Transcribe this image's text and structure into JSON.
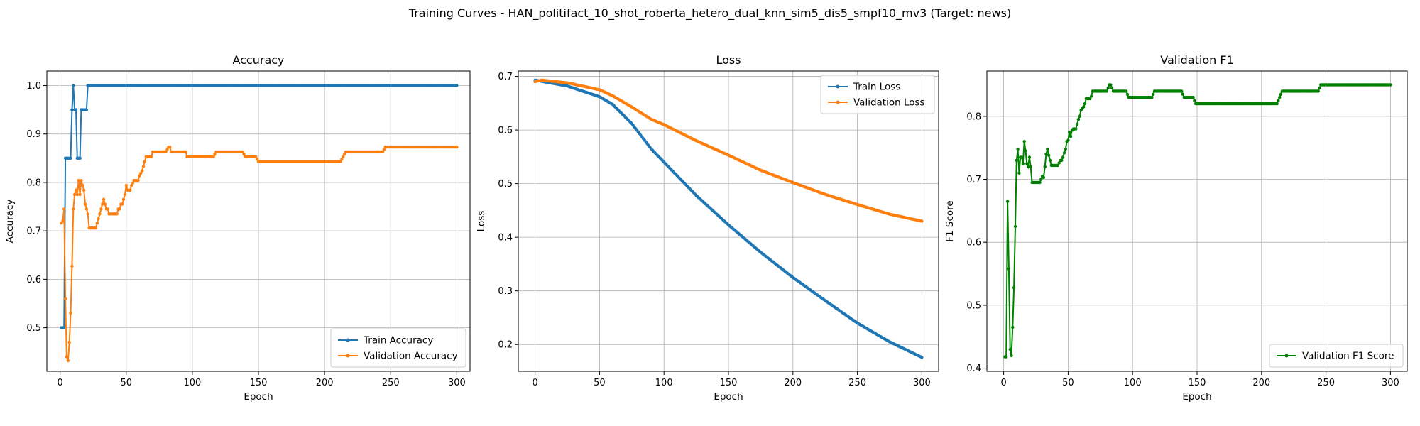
{
  "figure": {
    "suptitle": "Training Curves - HAN_politifact_10_shot_roberta_hetero_dual_knn_sim5_dis5_smpf10_mv3 (Target: news)"
  },
  "chart_data": [
    {
      "type": "line",
      "title": "Accuracy",
      "xlabel": "Epoch",
      "ylabel": "Accuracy",
      "xlim": [
        -10,
        310
      ],
      "ylim": [
        0.41,
        1.03
      ],
      "xticks": [
        0,
        50,
        100,
        150,
        200,
        250,
        300
      ],
      "yticks": [
        0.5,
        0.6,
        0.7,
        0.8,
        0.9,
        1.0
      ],
      "ytick_labels": [
        "0.5",
        "0.6",
        "0.7",
        "0.8",
        "0.9",
        "1.0"
      ],
      "grid": true,
      "legend": "lower-right",
      "series": [
        {
          "name": "Train Accuracy",
          "color": "#1f77b4",
          "x": [
            1,
            2,
            3,
            4,
            5,
            6,
            7,
            8,
            9,
            10,
            11,
            12,
            13,
            14,
            15,
            16,
            17,
            18,
            19,
            20,
            21,
            22,
            23,
            300
          ],
          "y": [
            0.5,
            0.5,
            0.5,
            0.85,
            0.85,
            0.85,
            0.85,
            0.85,
            0.95,
            1.0,
            0.95,
            0.95,
            0.85,
            0.85,
            0.85,
            0.95,
            0.95,
            0.95,
            0.95,
            0.95,
            1.0,
            1.0,
            1.0,
            1.0
          ]
        },
        {
          "name": "Validation Accuracy",
          "color": "#ff7f0e",
          "x": [
            1,
            2,
            3,
            4,
            5,
            6,
            7,
            8,
            9,
            10,
            11,
            12,
            13,
            14,
            15,
            16,
            17,
            18,
            19,
            20,
            21,
            22,
            25,
            27,
            28,
            29,
            30,
            31,
            32,
            33,
            34,
            35,
            36,
            37,
            43,
            44,
            45,
            46,
            47,
            48,
            49,
            50,
            51,
            52,
            53,
            54,
            56,
            58,
            59,
            60,
            62,
            63,
            64,
            65,
            66,
            67,
            68,
            69,
            70,
            78,
            80,
            82,
            83,
            84,
            86,
            95,
            96,
            97,
            116,
            118,
            120,
            138,
            140,
            148,
            150,
            210,
            212,
            214,
            216,
            244,
            246,
            300
          ],
          "y": [
            0.716,
            0.72,
            0.745,
            0.56,
            0.44,
            0.432,
            0.47,
            0.53,
            0.627,
            0.745,
            0.775,
            0.784,
            0.775,
            0.804,
            0.775,
            0.804,
            0.794,
            0.784,
            0.755,
            0.745,
            0.735,
            0.706,
            0.706,
            0.706,
            0.716,
            0.725,
            0.735,
            0.745,
            0.755,
            0.765,
            0.755,
            0.745,
            0.745,
            0.735,
            0.735,
            0.745,
            0.745,
            0.755,
            0.755,
            0.765,
            0.775,
            0.794,
            0.784,
            0.784,
            0.784,
            0.794,
            0.804,
            0.804,
            0.804,
            0.814,
            0.824,
            0.833,
            0.843,
            0.853,
            0.853,
            0.853,
            0.853,
            0.853,
            0.863,
            0.863,
            0.863,
            0.873,
            0.873,
            0.863,
            0.863,
            0.863,
            0.853,
            0.853,
            0.853,
            0.863,
            0.863,
            0.863,
            0.853,
            0.853,
            0.843,
            0.843,
            0.843,
            0.853,
            0.863,
            0.863,
            0.873,
            0.873
          ]
        }
      ]
    },
    {
      "type": "line",
      "title": "Loss",
      "xlabel": "Epoch",
      "ylabel": "Loss",
      "xlim": [
        -13,
        313
      ],
      "ylim": [
        0.15,
        0.71
      ],
      "xticks": [
        0,
        50,
        100,
        150,
        200,
        250,
        300
      ],
      "yticks": [
        0.2,
        0.3,
        0.4,
        0.5,
        0.6,
        0.7
      ],
      "ytick_labels": [
        "0.2",
        "0.3",
        "0.4",
        "0.5",
        "0.6",
        "0.7"
      ],
      "grid": true,
      "legend": "top-right",
      "series": [
        {
          "name": "Train Loss",
          "color": "#1f77b4",
          "x": [
            0,
            25,
            50,
            60,
            75,
            90,
            100,
            125,
            150,
            175,
            200,
            225,
            250,
            275,
            300
          ],
          "y": [
            0.693,
            0.682,
            0.662,
            0.648,
            0.612,
            0.565,
            0.54,
            0.478,
            0.423,
            0.372,
            0.325,
            0.282,
            0.24,
            0.205,
            0.176
          ]
        },
        {
          "name": "Validation Loss",
          "color": "#ff7f0e",
          "x": [
            0,
            5,
            25,
            50,
            60,
            75,
            90,
            100,
            125,
            150,
            175,
            200,
            225,
            250,
            275,
            300
          ],
          "y": [
            0.69,
            0.693,
            0.688,
            0.675,
            0.664,
            0.643,
            0.62,
            0.61,
            0.58,
            0.553,
            0.525,
            0.502,
            0.48,
            0.461,
            0.443,
            0.43
          ]
        }
      ]
    },
    {
      "type": "line",
      "title": "Validation F1",
      "xlabel": "Epoch",
      "ylabel": "F1 Score",
      "xlim": [
        -13,
        313
      ],
      "ylim": [
        0.395,
        0.872
      ],
      "xticks": [
        0,
        50,
        100,
        150,
        200,
        250,
        300
      ],
      "yticks": [
        0.4,
        0.5,
        0.6,
        0.7,
        0.8
      ],
      "ytick_labels": [
        "0.4",
        "0.5",
        "0.6",
        "0.7",
        "0.8"
      ],
      "grid": true,
      "legend": "lower-right",
      "series": [
        {
          "name": "Validation F1 Score",
          "color": "#008000",
          "x": [
            1,
            2,
            3,
            4,
            5,
            6,
            7,
            8,
            9,
            10,
            11,
            12,
            13,
            14,
            15,
            16,
            17,
            18,
            19,
            20,
            21,
            22,
            24,
            26,
            28,
            30,
            31,
            32,
            33,
            34,
            35,
            36,
            37,
            38,
            42,
            44,
            45,
            46,
            47,
            48,
            49,
            50,
            51,
            52,
            53,
            54,
            56,
            58,
            59,
            60,
            62,
            63,
            64,
            65,
            66,
            67,
            68,
            69,
            70,
            78,
            80,
            82,
            83,
            85,
            95,
            97,
            115,
            117,
            120,
            138,
            140,
            147,
            149,
            212,
            214,
            216,
            244,
            246,
            300
          ],
          "y": [
            0.418,
            0.418,
            0.665,
            0.558,
            0.43,
            0.42,
            0.465,
            0.528,
            0.625,
            0.73,
            0.748,
            0.71,
            0.735,
            0.735,
            0.725,
            0.76,
            0.745,
            0.725,
            0.72,
            0.735,
            0.72,
            0.695,
            0.695,
            0.695,
            0.695,
            0.705,
            0.703,
            0.72,
            0.74,
            0.748,
            0.738,
            0.73,
            0.722,
            0.722,
            0.722,
            0.73,
            0.73,
            0.735,
            0.742,
            0.748,
            0.76,
            0.762,
            0.775,
            0.768,
            0.778,
            0.78,
            0.78,
            0.795,
            0.8,
            0.81,
            0.815,
            0.82,
            0.828,
            0.828,
            0.828,
            0.828,
            0.832,
            0.84,
            0.84,
            0.84,
            0.84,
            0.85,
            0.85,
            0.84,
            0.84,
            0.83,
            0.83,
            0.84,
            0.84,
            0.84,
            0.83,
            0.83,
            0.82,
            0.82,
            0.83,
            0.84,
            0.84,
            0.85,
            0.85
          ]
        }
      ]
    }
  ]
}
